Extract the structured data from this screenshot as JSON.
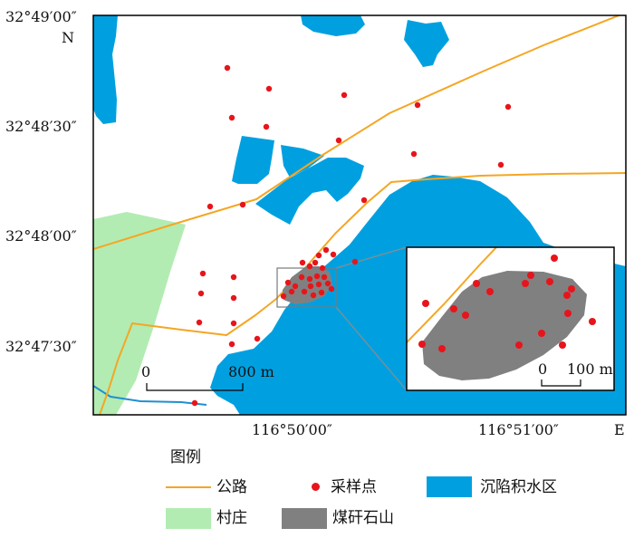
{
  "map": {
    "lat_labels": [
      "32°49′00″",
      "32°48′30″",
      "32°48′00″",
      "32°47′30″"
    ],
    "lon_labels": [
      "116°50′00″",
      "116°51′00″"
    ],
    "north_label": "N",
    "east_label": "E",
    "scale_main": {
      "zero": "0",
      "value": "800 m"
    },
    "scale_inset": {
      "zero": "0",
      "value": "100 m"
    }
  },
  "legend": {
    "title": "图例",
    "items": [
      {
        "key": "road",
        "label": "公路"
      },
      {
        "key": "sample",
        "label": "采样点"
      },
      {
        "key": "water",
        "label": "沉陷积水区"
      },
      {
        "key": "village",
        "label": "村庄"
      },
      {
        "key": "gangue",
        "label": "煤矸石山"
      }
    ]
  },
  "colors": {
    "water": "#00a0e0",
    "village": "#b2ecb2",
    "gangue": "#808080",
    "road": "#f5a623",
    "sample": "#e8141b",
    "river": "#1f8fd0"
  }
}
